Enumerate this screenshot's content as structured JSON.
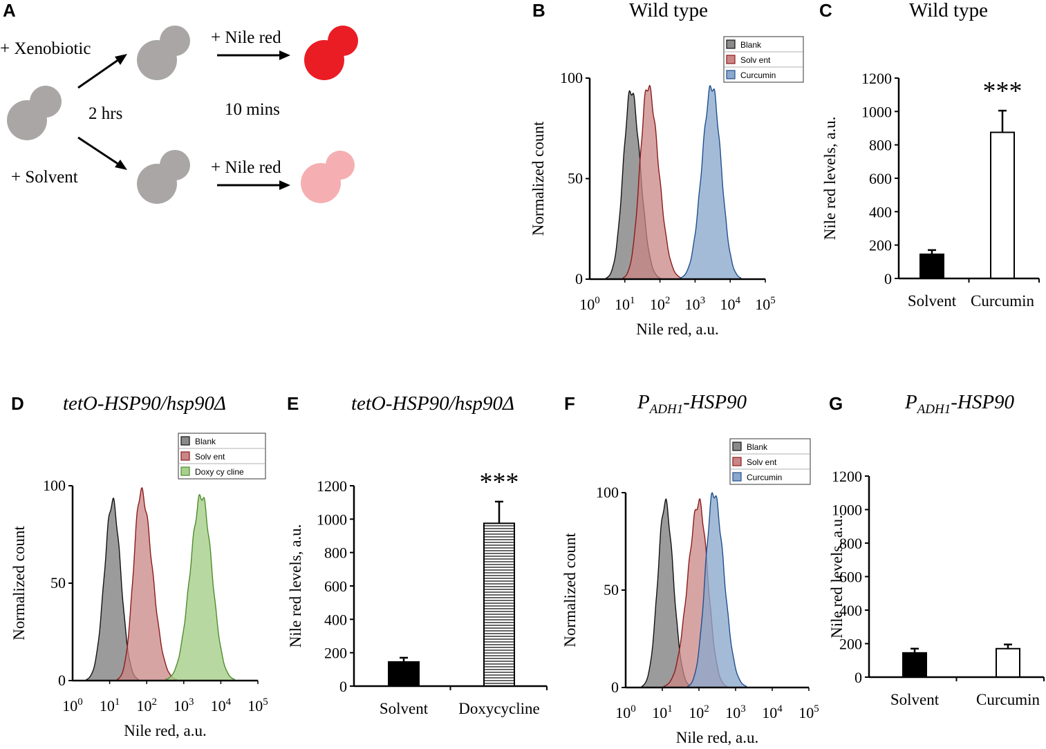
{
  "colors": {
    "gray": "#8a8a8a",
    "red_fill": "#c98686",
    "red_line": "#8b1a1a",
    "blue_fill": "#8aa8cc",
    "blue_line": "#1f4f8f",
    "green_fill": "#a8cf8c",
    "green_line": "#4d8c2d",
    "cell_gray": "#aaa6a6",
    "cell_red": "#ea1d25",
    "cell_pink": "#f5afb2"
  },
  "panel_labels": {
    "a": "A",
    "b": "B",
    "c": "C",
    "d": "D",
    "e": "E",
    "f": "F",
    "g": "G"
  },
  "panel_a": {
    "xenobiotic": "+ Xenobiotic",
    "solvent": "+ Solvent",
    "nile_red_top": "+ Nile red",
    "nile_red_bottom": "+ Nile red",
    "time_2": "2 hrs",
    "time_10": "10 mins"
  },
  "panel_b": {
    "title": "Wild type",
    "ylabel": "Normalized count",
    "xlabel": "Nile red, a.u.",
    "yticks": [
      "0",
      "50",
      "100"
    ],
    "legend": [
      "Blank",
      "Solv ent",
      "Curcumin"
    ]
  },
  "panel_c": {
    "title": "Wild type",
    "ylabel": "Nile red levels, a.u.",
    "categories": [
      "Solvent",
      "Curcumin"
    ],
    "yticks": [
      "0",
      "200",
      "400",
      "600",
      "800",
      "1000",
      "1200"
    ],
    "stars": "***"
  },
  "panel_d": {
    "title": "tetO-HSP90/hsp90Δ",
    "ylabel": "Normalized count",
    "xlabel": "Nile red, a.u.",
    "yticks": [
      "0",
      "50",
      "100"
    ],
    "legend": [
      "Blank",
      "Solv ent",
      "Doxy cy cline"
    ]
  },
  "panel_e": {
    "title": "tetO-HSP90/hsp90Δ",
    "ylabel": "Nile red levels, a.u.",
    "categories": [
      "Solvent",
      "Doxycycline"
    ],
    "yticks": [
      "0",
      "200",
      "400",
      "600",
      "800",
      "1000",
      "1200"
    ],
    "stars": "***"
  },
  "panel_f": {
    "title_main": "P",
    "title_sub": "ADH1",
    "title_rest": "-HSP90",
    "ylabel": "Normalized count",
    "xlabel": "Nile red, a.u.",
    "yticks": [
      "0",
      "50",
      "100"
    ],
    "legend": [
      "Blank",
      "Solv ent",
      "Curcumin"
    ]
  },
  "panel_g": {
    "title_main": "P",
    "title_sub": "ADH1",
    "title_rest": "-HSP90",
    "ylabel": "Nile red levels, a.u.",
    "categories": [
      "Solvent",
      "Curcumin"
    ],
    "yticks": [
      "0",
      "200",
      "400",
      "600",
      "800",
      "1000",
      "1200"
    ]
  },
  "chart_data": [
    {
      "panel": "B",
      "type": "area",
      "title": "Wild type",
      "xlabel": "Nile red, a.u.",
      "ylabel": "Normalized count",
      "xscale": "log10",
      "xlim": [
        1,
        100000
      ],
      "ylim": [
        0,
        100
      ],
      "xticks": [
        "10^0",
        "10^1",
        "10^2",
        "10^3",
        "10^4",
        "10^5"
      ],
      "series": [
        {
          "name": "Blank",
          "peak_x": 15,
          "peak_y": 94
        },
        {
          "name": "Solv ent",
          "peak_x": 45,
          "peak_y": 96
        },
        {
          "name": "Curcumin",
          "peak_x": 3000,
          "peak_y": 96
        }
      ]
    },
    {
      "panel": "C",
      "type": "bar",
      "title": "Wild type",
      "ylabel": "Nile red levels, a.u.",
      "ylim": [
        0,
        1200
      ],
      "categories": [
        "Solvent",
        "Curcumin"
      ],
      "values": [
        145,
        875
      ],
      "errors": [
        25,
        130
      ],
      "bar_fills": [
        "black",
        "white"
      ],
      "annotation": "***"
    },
    {
      "panel": "D",
      "type": "area",
      "title": "tetO-HSP90/hsp90Δ",
      "xlabel": "Nile red, a.u.",
      "ylabel": "Normalized count",
      "xscale": "log10",
      "xlim": [
        1,
        100000
      ],
      "ylim": [
        0,
        100
      ],
      "xticks": [
        "10^0",
        "10^1",
        "10^2",
        "10^3",
        "10^4",
        "10^5"
      ],
      "series": [
        {
          "name": "Blank",
          "peak_x": 12,
          "peak_y": 92
        },
        {
          "name": "Solv ent",
          "peak_x": 70,
          "peak_y": 97
        },
        {
          "name": "Doxy cy cline",
          "peak_x": 3000,
          "peak_y": 95
        }
      ]
    },
    {
      "panel": "E",
      "type": "bar",
      "title": "tetO-HSP90/hsp90Δ",
      "ylabel": "Nile red levels, a.u.",
      "ylim": [
        0,
        1200
      ],
      "categories": [
        "Solvent",
        "Doxycycline"
      ],
      "values": [
        145,
        975
      ],
      "errors": [
        25,
        130
      ],
      "bar_fills": [
        "black",
        "hatched"
      ],
      "annotation": "***"
    },
    {
      "panel": "F",
      "type": "area",
      "title": "PADH1-HSP90",
      "xlabel": "Nile red, a.u.",
      "ylabel": "Normalized count",
      "xscale": "log10",
      "xlim": [
        1,
        100000
      ],
      "ylim": [
        0,
        100
      ],
      "xticks": [
        "10^0",
        "10^1",
        "10^2",
        "10^3",
        "10^4",
        "10^5"
      ],
      "series": [
        {
          "name": "Blank",
          "peak_x": 12,
          "peak_y": 95
        },
        {
          "name": "Solv ent",
          "peak_x": 100,
          "peak_y": 95
        },
        {
          "name": "Curcumin",
          "peak_x": 250,
          "peak_y": 100
        }
      ]
    },
    {
      "panel": "G",
      "type": "bar",
      "title": "PADH1-HSP90",
      "ylabel": "Nile red levels, a.u.",
      "ylim": [
        0,
        1200
      ],
      "categories": [
        "Solvent",
        "Curcumin"
      ],
      "values": [
        145,
        170
      ],
      "errors": [
        25,
        25
      ],
      "bar_fills": [
        "black",
        "white"
      ]
    }
  ]
}
